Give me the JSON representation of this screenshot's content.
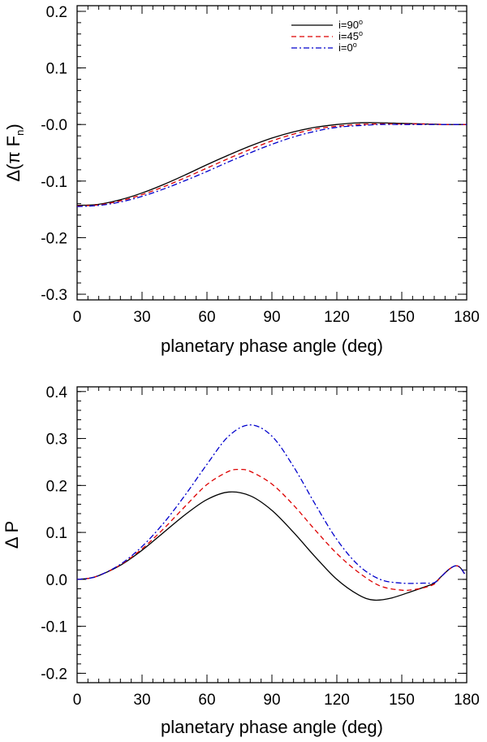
{
  "colors": {
    "i90": "#000000",
    "i45": "#dd0000",
    "i0": "#0000cc"
  },
  "legend_entries": [
    {
      "label": "i=90",
      "sup": "o",
      "color": "#000000",
      "dash": "solid"
    },
    {
      "label": "i=45",
      "sup": "o",
      "color": "#dd0000",
      "dash": "dashed"
    },
    {
      "label": "i=0",
      "sup": "o",
      "color": "#0000cc",
      "dash": "dashdot"
    }
  ],
  "chart_data": [
    {
      "type": "line",
      "title": "",
      "xlabel": "planetary phase angle (deg)",
      "ylabel_main": "Δ(π F",
      "ylabel_sub": "n",
      "ylabel_close": ")",
      "xlim": [
        0,
        180
      ],
      "ylim": [
        -0.31,
        0.21
      ],
      "xticks": [
        0,
        30,
        60,
        90,
        120,
        150,
        180
      ],
      "xtick_labels": [
        "0",
        "30",
        "60",
        "90",
        "120",
        "150",
        "180"
      ],
      "yticks": [
        0.2,
        0.1,
        0.0,
        -0.1,
        -0.2,
        -0.3
      ],
      "ytick_labels": [
        "0.2",
        "0.1",
        "-0.0",
        "-0.1",
        "-0.2",
        "-0.3"
      ],
      "legend_position": "top-right",
      "x": [
        0,
        10,
        20,
        30,
        40,
        50,
        60,
        70,
        80,
        90,
        100,
        110,
        120,
        130,
        140,
        150,
        160,
        170,
        180
      ],
      "series": [
        {
          "name": "i=90°",
          "key": "i90",
          "values": [
            -0.143,
            -0.141,
            -0.133,
            -0.121,
            -0.106,
            -0.089,
            -0.071,
            -0.054,
            -0.038,
            -0.024,
            -0.013,
            -0.005,
            0.0,
            0.003,
            0.003,
            0.002,
            0.001,
            0.0,
            0.0
          ]
        },
        {
          "name": "i=45°",
          "key": "i45",
          "values": [
            -0.144,
            -0.142,
            -0.135,
            -0.124,
            -0.11,
            -0.094,
            -0.077,
            -0.06,
            -0.044,
            -0.029,
            -0.017,
            -0.008,
            -0.003,
            0.0,
            0.001,
            0.001,
            0.001,
            0.0,
            0.0
          ]
        },
        {
          "name": "i=0°",
          "key": "i0",
          "values": [
            -0.145,
            -0.143,
            -0.137,
            -0.127,
            -0.114,
            -0.099,
            -0.083,
            -0.066,
            -0.05,
            -0.035,
            -0.022,
            -0.012,
            -0.005,
            -0.002,
            0.0,
            0.0,
            0.0,
            0.0,
            0.0
          ]
        }
      ]
    },
    {
      "type": "line",
      "title": "",
      "xlabel": "planetary phase angle (deg)",
      "ylabel": "Δ P",
      "xlim": [
        0,
        180
      ],
      "ylim": [
        -0.22,
        0.41
      ],
      "xticks": [
        0,
        30,
        60,
        90,
        120,
        150,
        180
      ],
      "xtick_labels": [
        "0",
        "30",
        "60",
        "90",
        "120",
        "150",
        "180"
      ],
      "yticks": [
        0.4,
        0.3,
        0.2,
        0.1,
        0.0,
        -0.1,
        -0.2
      ],
      "ytick_labels": [
        "0.4",
        "0.3",
        "0.2",
        "0.1",
        "0.0",
        "-0.1",
        "-0.2"
      ],
      "series": [
        {
          "name": "i=90°",
          "key": "i90",
          "x": [
            0,
            5,
            10,
            20,
            30,
            40,
            50,
            60,
            70,
            80,
            90,
            100,
            110,
            120,
            130,
            137,
            145,
            155,
            160,
            165,
            168,
            172,
            175,
            177,
            179
          ],
          "values": [
            0.0,
            0.002,
            0.008,
            0.03,
            0.062,
            0.1,
            0.138,
            0.17,
            0.186,
            0.178,
            0.147,
            0.1,
            0.048,
            0.0,
            -0.033,
            -0.044,
            -0.04,
            -0.025,
            -0.017,
            -0.008,
            0.005,
            0.022,
            0.029,
            0.025,
            0.012
          ]
        },
        {
          "name": "i=45°",
          "key": "i45",
          "x": [
            0,
            5,
            10,
            20,
            30,
            40,
            50,
            60,
            70,
            75,
            80,
            90,
            100,
            110,
            120,
            130,
            140,
            150,
            155,
            160,
            165,
            168,
            172,
            175,
            177,
            179
          ],
          "values": [
            0.0,
            0.002,
            0.008,
            0.031,
            0.065,
            0.108,
            0.156,
            0.202,
            0.23,
            0.234,
            0.23,
            0.203,
            0.158,
            0.105,
            0.055,
            0.015,
            -0.014,
            -0.023,
            -0.022,
            -0.018,
            -0.01,
            0.005,
            0.022,
            0.029,
            0.025,
            0.012
          ]
        },
        {
          "name": "i=0°",
          "key": "i0",
          "x": [
            0,
            5,
            10,
            20,
            30,
            40,
            50,
            60,
            70,
            80,
            90,
            100,
            110,
            120,
            130,
            140,
            150,
            160,
            165,
            168,
            172,
            175,
            177,
            179
          ],
          "values": [
            0.0,
            0.002,
            0.008,
            0.032,
            0.07,
            0.12,
            0.18,
            0.245,
            0.305,
            0.329,
            0.305,
            0.24,
            0.16,
            0.085,
            0.03,
            0.0,
            -0.008,
            -0.008,
            -0.007,
            0.005,
            0.022,
            0.029,
            0.025,
            0.012
          ]
        }
      ]
    }
  ]
}
